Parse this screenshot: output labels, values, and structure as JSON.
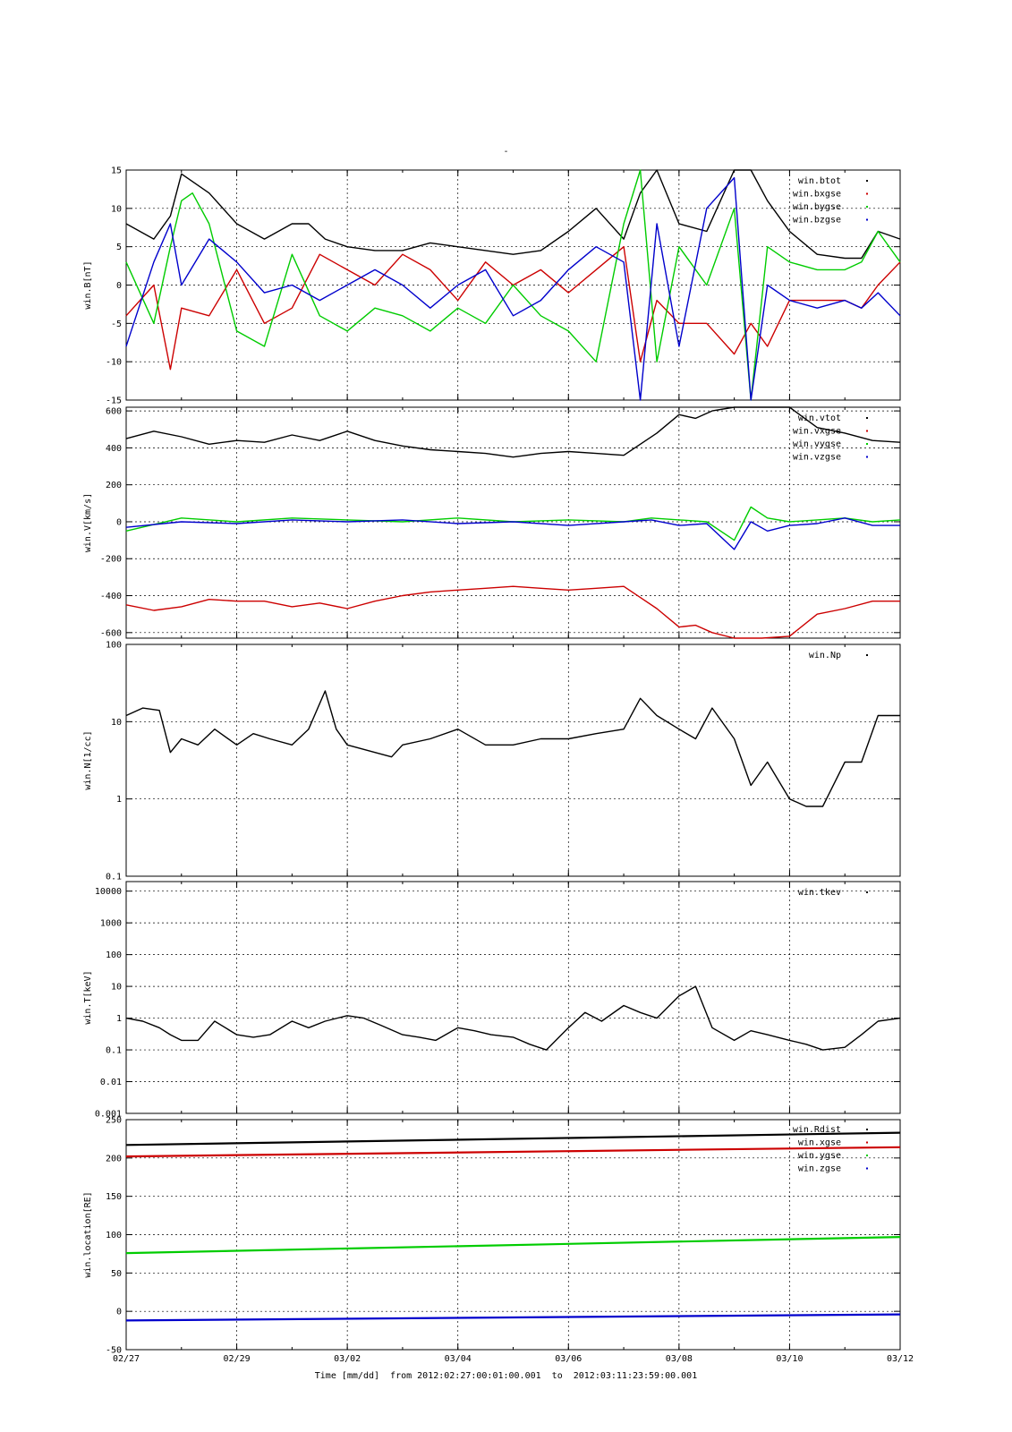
{
  "page_title": "-",
  "x_axis_label": "Time [mm/dd]  from 2012:02:27:00:01:00.001  to  2012:03:11:23:59:00.001",
  "x_range_days": [
    0,
    14
  ],
  "x_ticks": [
    {
      "day": 0,
      "label": "02/27"
    },
    {
      "day": 2,
      "label": "02/29"
    },
    {
      "day": 4,
      "label": "03/02"
    },
    {
      "day": 6,
      "label": "03/04"
    },
    {
      "day": 8,
      "label": "03/06"
    },
    {
      "day": 10,
      "label": "03/08"
    },
    {
      "day": 12,
      "label": "03/10"
    },
    {
      "day": 14,
      "label": "03/12"
    }
  ],
  "colors": {
    "black": "#000000",
    "red": "#cc0000",
    "green": "#00cc00",
    "blue": "#0000cc"
  },
  "chart_data": [
    {
      "type": "scatter",
      "ylabel": "win.B[nT]",
      "scale": "linear",
      "ylim": [
        -15,
        15
      ],
      "yticks": [
        {
          "v": 15,
          "label": "15"
        },
        {
          "v": 10,
          "label": "10"
        },
        {
          "v": 5,
          "label": "5"
        },
        {
          "v": 0,
          "label": "0"
        },
        {
          "v": -5,
          "label": "-5"
        },
        {
          "v": -10,
          "label": "-10"
        },
        {
          "v": -15,
          "label": "-15"
        }
      ],
      "series": [
        {
          "name": "win.btot",
          "color": "black",
          "x": [
            0,
            0.5,
            0.8,
            1,
            1.5,
            2,
            2.5,
            3,
            3.3,
            3.6,
            4,
            4.5,
            5,
            5.5,
            6,
            6.5,
            7,
            7.5,
            8,
            8.5,
            9,
            9.3,
            9.6,
            10,
            10.5,
            11,
            11.3,
            11.6,
            12,
            12.5,
            13,
            13.3,
            13.6,
            14
          ],
          "y": [
            8,
            6,
            9,
            14.5,
            12,
            8,
            6,
            8,
            8,
            6,
            5,
            4.5,
            4.5,
            5.5,
            5,
            4.5,
            4,
            4.5,
            7,
            10,
            6,
            12,
            16,
            8,
            7,
            16,
            16,
            11,
            7,
            4,
            3.5,
            3.5,
            7,
            6
          ]
        },
        {
          "name": "win.bxgse",
          "color": "red",
          "x": [
            0,
            0.5,
            0.8,
            1,
            1.5,
            2,
            2.5,
            3,
            3.5,
            4,
            4.5,
            5,
            5.5,
            6,
            6.5,
            7,
            7.5,
            8,
            8.5,
            9,
            9.3,
            9.6,
            10,
            10.5,
            11,
            11.3,
            11.6,
            12,
            12.5,
            13,
            13.3,
            13.6,
            14
          ],
          "y": [
            -4,
            0,
            -11,
            -3,
            -4,
            2,
            -5,
            -3,
            4,
            2,
            0,
            4,
            2,
            -2,
            3,
            0,
            2,
            -1,
            2,
            5,
            -10,
            -2,
            -5,
            -5,
            -9,
            -5,
            -8,
            -2,
            -2,
            -2,
            -3,
            0,
            3
          ]
        },
        {
          "name": "win.bygse",
          "color": "green",
          "x": [
            0,
            0.5,
            0.8,
            1,
            1.2,
            1.5,
            2,
            2.5,
            3,
            3.5,
            4,
            4.5,
            5,
            5.5,
            6,
            6.5,
            7,
            7.5,
            8,
            8.5,
            9,
            9.3,
            9.6,
            10,
            10.5,
            11,
            11.3,
            11.6,
            12,
            12.5,
            13,
            13.3,
            13.6,
            14
          ],
          "y": [
            3,
            -5,
            5,
            11,
            12,
            8,
            -6,
            -8,
            4,
            -4,
            -6,
            -3,
            -4,
            -6,
            -3,
            -5,
            0,
            -4,
            -6,
            -10,
            8,
            16,
            -10,
            5,
            0,
            10,
            -15,
            5,
            3,
            2,
            2,
            3,
            7,
            3
          ]
        },
        {
          "name": "win.bzgse",
          "color": "blue",
          "x": [
            0,
            0.5,
            0.8,
            1,
            1.5,
            2,
            2.5,
            3,
            3.5,
            4,
            4.5,
            5,
            5.5,
            6,
            6.5,
            7,
            7.5,
            8,
            8.5,
            9,
            9.3,
            9.6,
            10,
            10.5,
            11,
            11.3,
            11.6,
            12,
            12.5,
            13,
            13.3,
            13.6,
            14
          ],
          "y": [
            -8,
            3,
            8,
            0,
            6,
            3,
            -1,
            0,
            -2,
            0,
            2,
            0,
            -3,
            0,
            2,
            -4,
            -2,
            2,
            5,
            3,
            -15,
            8,
            -8,
            10,
            14,
            -15,
            0,
            -2,
            -3,
            -2,
            -3,
            -1,
            -4
          ]
        }
      ]
    },
    {
      "type": "scatter",
      "ylabel": "win.V[km/s]",
      "scale": "linear",
      "ylim": [
        -630,
        620
      ],
      "yticks": [
        {
          "v": 600,
          "label": "600"
        },
        {
          "v": 400,
          "label": "400"
        },
        {
          "v": 200,
          "label": "200"
        },
        {
          "v": 0,
          "label": "0"
        },
        {
          "v": -200,
          "label": "-200"
        },
        {
          "v": -400,
          "label": "-400"
        },
        {
          "v": -600,
          "label": "-600"
        }
      ],
      "series": [
        {
          "name": "win.vtot",
          "color": "black",
          "x": [
            0,
            0.5,
            1,
            1.5,
            2,
            2.5,
            3,
            3.5,
            4,
            4.5,
            5,
            5.5,
            6,
            6.5,
            7,
            7.5,
            8,
            8.5,
            9,
            9.3,
            9.6,
            10,
            10.3,
            10.6,
            11,
            11.5,
            12,
            12.5,
            13,
            13.5,
            14
          ],
          "y": [
            450,
            490,
            460,
            420,
            440,
            430,
            470,
            440,
            490,
            440,
            410,
            390,
            380,
            370,
            350,
            370,
            380,
            370,
            360,
            420,
            480,
            580,
            560,
            600,
            640,
            660,
            630,
            510,
            480,
            440,
            430
          ]
        },
        {
          "name": "win.vxgse",
          "color": "red",
          "x": [
            0,
            0.5,
            1,
            1.5,
            2,
            2.5,
            3,
            3.5,
            4,
            4.5,
            5,
            5.5,
            6,
            6.5,
            7,
            7.5,
            8,
            8.5,
            9,
            9.3,
            9.6,
            10,
            10.3,
            10.6,
            11,
            11.5,
            12,
            12.5,
            13,
            13.5,
            14
          ],
          "y": [
            -450,
            -480,
            -460,
            -420,
            -430,
            -430,
            -460,
            -440,
            -470,
            -430,
            -400,
            -380,
            -370,
            -360,
            -350,
            -360,
            -370,
            -360,
            -350,
            -410,
            -470,
            -570,
            -560,
            -600,
            -640,
            -650,
            -620,
            -500,
            -470,
            -430,
            -430
          ]
        },
        {
          "name": "win.vygse",
          "color": "green",
          "x": [
            0,
            1,
            2,
            3,
            4,
            5,
            6,
            7,
            8,
            9,
            9.5,
            10,
            10.5,
            11,
            11.3,
            11.6,
            12,
            12.5,
            13,
            13.5,
            14
          ],
          "y": [
            -50,
            20,
            0,
            20,
            10,
            0,
            20,
            0,
            10,
            0,
            20,
            10,
            0,
            -100,
            80,
            20,
            0,
            10,
            20,
            0,
            10
          ]
        },
        {
          "name": "win.vzgse",
          "color": "blue",
          "x": [
            0,
            1,
            2,
            3,
            4,
            5,
            6,
            7,
            8,
            9,
            9.5,
            10,
            10.5,
            11,
            11.3,
            11.6,
            12,
            12.5,
            13,
            13.5,
            14
          ],
          "y": [
            -30,
            0,
            -10,
            10,
            0,
            10,
            -10,
            0,
            -20,
            0,
            10,
            -20,
            -10,
            -150,
            0,
            -50,
            -20,
            -10,
            20,
            -20,
            -20
          ]
        }
      ]
    },
    {
      "type": "scatter",
      "ylabel": "win.N[1/cc]",
      "scale": "log",
      "ylim": [
        0.1,
        100
      ],
      "yticks": [
        {
          "v": 100,
          "label": "100"
        },
        {
          "v": 10,
          "label": "10"
        },
        {
          "v": 1,
          "label": "1"
        },
        {
          "v": 0.1,
          "label": "0.1"
        }
      ],
      "series": [
        {
          "name": "win.Np",
          "color": "black",
          "x": [
            0,
            0.3,
            0.6,
            0.8,
            1,
            1.3,
            1.6,
            2,
            2.3,
            2.6,
            3,
            3.3,
            3.6,
            3.8,
            4,
            4.5,
            4.8,
            5,
            5.5,
            6,
            6.5,
            7,
            7.5,
            8,
            8.5,
            9,
            9.3,
            9.6,
            10,
            10.3,
            10.6,
            11,
            11.3,
            11.6,
            12,
            12.3,
            12.6,
            13,
            13.3,
            13.6,
            14
          ],
          "y": [
            12,
            15,
            14,
            4,
            6,
            5,
            8,
            5,
            7,
            6,
            5,
            8,
            25,
            8,
            5,
            4,
            3.5,
            5,
            6,
            8,
            5,
            5,
            6,
            6,
            7,
            8,
            20,
            12,
            8,
            6,
            15,
            6,
            1.5,
            3,
            1,
            0.8,
            0.8,
            3,
            3,
            12,
            12
          ]
        }
      ]
    },
    {
      "type": "scatter",
      "ylabel": "win.T[keV]",
      "scale": "log",
      "ylim": [
        0.001,
        20000
      ],
      "yticks": [
        {
          "v": 10000,
          "label": "10000"
        },
        {
          "v": 1000,
          "label": "1000"
        },
        {
          "v": 100,
          "label": "100"
        },
        {
          "v": 10,
          "label": "10"
        },
        {
          "v": 1,
          "label": "1"
        },
        {
          "v": 0.1,
          "label": "0.1"
        },
        {
          "v": 0.01,
          "label": "0.01"
        },
        {
          "v": 0.001,
          "label": "0.001"
        }
      ],
      "series": [
        {
          "name": "win.tkev",
          "color": "black",
          "x": [
            0,
            0.3,
            0.6,
            0.8,
            1,
            1.3,
            1.6,
            2,
            2.3,
            2.6,
            3,
            3.3,
            3.6,
            4,
            4.3,
            4.6,
            5,
            5.3,
            5.6,
            6,
            6.3,
            6.6,
            7,
            7.3,
            7.6,
            8,
            8.3,
            8.6,
            9,
            9.3,
            9.6,
            10,
            10.3,
            10.6,
            11,
            11.3,
            11.6,
            12,
            12.3,
            12.6,
            13,
            13.3,
            13.6,
            14
          ],
          "y": [
            1,
            0.8,
            0.5,
            0.3,
            0.2,
            0.2,
            0.8,
            0.3,
            0.25,
            0.3,
            0.8,
            0.5,
            0.8,
            1.2,
            1,
            0.6,
            0.3,
            0.25,
            0.2,
            0.5,
            0.4,
            0.3,
            0.25,
            0.15,
            0.1,
            0.5,
            1.5,
            0.8,
            2.5,
            1.5,
            1,
            5,
            10,
            0.5,
            0.2,
            0.4,
            0.3,
            0.2,
            0.15,
            0.1,
            0.12,
            0.3,
            0.8,
            1
          ]
        }
      ]
    },
    {
      "type": "line",
      "ylabel": "win.location[RE]",
      "scale": "linear",
      "ylim": [
        -50,
        250
      ],
      "yticks": [
        {
          "v": 250,
          "label": "250"
        },
        {
          "v": 200,
          "label": "200"
        },
        {
          "v": 150,
          "label": "150"
        },
        {
          "v": 100,
          "label": "100"
        },
        {
          "v": 50,
          "label": "50"
        },
        {
          "v": 0,
          "label": "0"
        },
        {
          "v": -50,
          "label": "-50"
        }
      ],
      "series": [
        {
          "name": "win.Rdist",
          "color": "black",
          "x": [
            0,
            14
          ],
          "y": [
            217,
            233
          ]
        },
        {
          "name": "win.xgse",
          "color": "red",
          "x": [
            0,
            14
          ],
          "y": [
            202,
            214
          ]
        },
        {
          "name": "win.ygse",
          "color": "green",
          "x": [
            0,
            14
          ],
          "y": [
            76,
            97
          ]
        },
        {
          "name": "win.zgse",
          "color": "blue",
          "x": [
            0,
            14
          ],
          "y": [
            -12,
            -4
          ]
        }
      ]
    }
  ]
}
